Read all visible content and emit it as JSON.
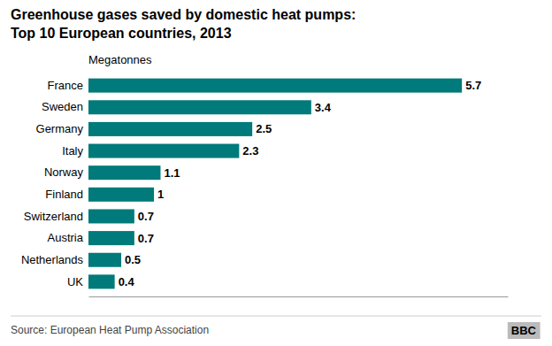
{
  "chart_data": {
    "type": "bar",
    "orientation": "horizontal",
    "title": "Greenhouse gases saved by domestic heat pumps:",
    "subtitle": "Top 10 European countries, 2013",
    "xlabel": "Megatonnes",
    "annotations": [
      "Source: European Heat Pump Association",
      "BBC"
    ],
    "categories": [
      "France",
      "Sweden",
      "Germany",
      "Italy",
      "Norway",
      "Finland",
      "Switzerland",
      "Austria",
      "Netherlands",
      "UK"
    ],
    "values": [
      5.7,
      3.4,
      2.5,
      2.3,
      1.1,
      1.0,
      0.7,
      0.7,
      0.5,
      0.4
    ],
    "color": "#007a7a",
    "xlim": [
      0,
      6.4
    ],
    "data_labels": true,
    "tick_labels": "y",
    "grid": false
  }
}
